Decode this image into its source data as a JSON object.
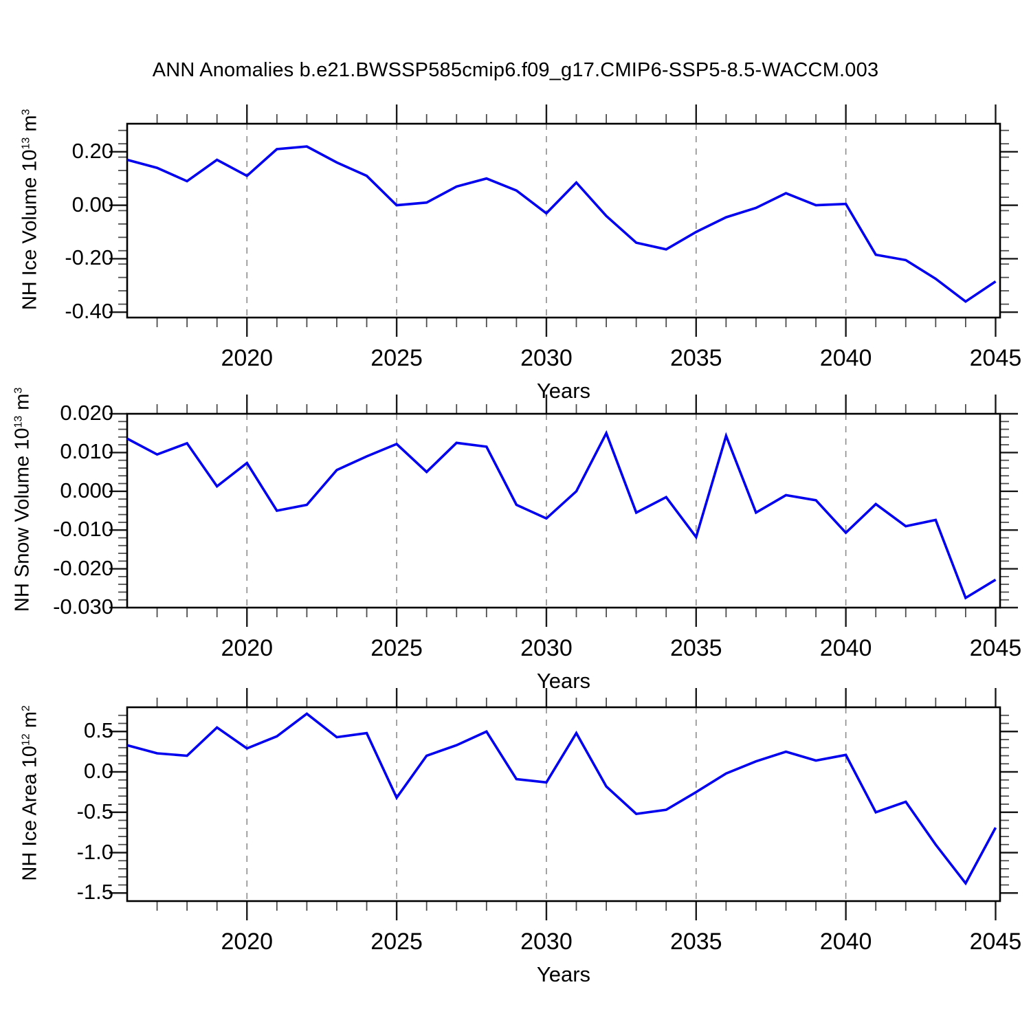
{
  "title": "ANN Anomalies b.e21.BWSSP585cmip6.f09_g17.CMIP6-SSP5-8.5-WACCM.003",
  "colors": {
    "line": "#0000ee",
    "grid": "#8c8c8c",
    "frame": "#000000",
    "major_tick": "#1a1a1a",
    "minor_tick": "#4d4d4d"
  },
  "chart_data": [
    {
      "type": "line",
      "name": "nh-ice-volume",
      "ylabel": {
        "main": "NH Ice Volume 10",
        "exp": "13",
        "unit": " m",
        "unit_exp": "3"
      },
      "xlabel": "Years",
      "x": [
        2016,
        2017,
        2018,
        2019,
        2020,
        2021,
        2022,
        2023,
        2024,
        2025,
        2026,
        2027,
        2028,
        2029,
        2030,
        2031,
        2032,
        2033,
        2034,
        2035,
        2036,
        2037,
        2038,
        2039,
        2040,
        2041,
        2042,
        2043,
        2044,
        2045
      ],
      "values": [
        0.17,
        0.14,
        0.09,
        0.17,
        0.11,
        0.21,
        0.22,
        0.16,
        0.11,
        0.0,
        0.01,
        0.07,
        0.1,
        0.055,
        -0.03,
        0.085,
        -0.04,
        -0.14,
        -0.165,
        -0.1,
        -0.045,
        -0.01,
        0.045,
        0.0,
        0.005,
        -0.185,
        -0.205,
        -0.275,
        -0.36,
        -0.285
      ],
      "xlim": [
        2016,
        2045.15
      ],
      "ylim": [
        -0.42,
        0.305
      ],
      "xticks": {
        "values": [
          2020,
          2025,
          2030,
          2035,
          2040,
          2045
        ],
        "labels": [
          "2020",
          "2025",
          "2030",
          "2035",
          "2040",
          "2045"
        ]
      },
      "yticks": {
        "values": [
          0.2,
          0.0,
          -0.2,
          -0.4
        ],
        "labels": [
          "0.20",
          "0.00",
          "-0.20",
          "-0.40"
        ]
      },
      "y_minor_step": 0.05,
      "grid_x": [
        2020,
        2025,
        2030,
        2035,
        2040
      ],
      "grid": "vertical-dashed",
      "legend": "none"
    },
    {
      "type": "line",
      "name": "nh-snow-volume",
      "ylabel": {
        "main": "NH Snow Volume 10",
        "exp": "13",
        "unit": " m",
        "unit_exp": "3"
      },
      "xlabel": "Years",
      "x": [
        2016,
        2017,
        2018,
        2019,
        2020,
        2021,
        2022,
        2023,
        2024,
        2025,
        2026,
        2027,
        2028,
        2029,
        2030,
        2031,
        2032,
        2033,
        2034,
        2035,
        2036,
        2037,
        2038,
        2039,
        2040,
        2041,
        2042,
        2043,
        2044,
        2045
      ],
      "values": [
        0.0136,
        0.0095,
        0.0124,
        0.0013,
        0.0073,
        -0.005,
        -0.0035,
        0.0055,
        0.009,
        0.0122,
        0.005,
        0.0125,
        0.0115,
        -0.0035,
        -0.007,
        0.0,
        0.015,
        -0.0055,
        -0.0015,
        -0.0118,
        0.0143,
        -0.0055,
        -0.001,
        -0.0023,
        -0.0107,
        -0.0033,
        -0.009,
        -0.0074,
        -0.0275,
        -0.0228
      ],
      "xlim": [
        2016,
        2045.15
      ],
      "ylim": [
        -0.03,
        0.02
      ],
      "xticks": {
        "values": [
          2020,
          2025,
          2030,
          2035,
          2040,
          2045
        ],
        "labels": [
          "2020",
          "2025",
          "2030",
          "2035",
          "2040",
          "2045"
        ]
      },
      "yticks": {
        "values": [
          0.02,
          0.01,
          0.0,
          -0.01,
          -0.02,
          -0.03
        ],
        "labels": [
          "0.020",
          "0.010",
          "0.000",
          "-0.010",
          "-0.020",
          "-0.030"
        ]
      },
      "y_minor_step": 0.002,
      "grid_x": [
        2020,
        2025,
        2030,
        2035,
        2040
      ],
      "grid": "vertical-dashed",
      "legend": "none"
    },
    {
      "type": "line",
      "name": "nh-ice-area",
      "ylabel": {
        "main": "NH Ice Area 10",
        "exp": "12",
        "unit": " m",
        "unit_exp": "2"
      },
      "xlabel": "Years",
      "x": [
        2016,
        2017,
        2018,
        2019,
        2020,
        2021,
        2022,
        2023,
        2024,
        2025,
        2026,
        2027,
        2028,
        2029,
        2030,
        2031,
        2032,
        2033,
        2034,
        2035,
        2036,
        2037,
        2038,
        2039,
        2040,
        2041,
        2042,
        2043,
        2044,
        2045
      ],
      "values": [
        0.33,
        0.23,
        0.2,
        0.55,
        0.29,
        0.44,
        0.72,
        0.43,
        0.48,
        -0.32,
        0.2,
        0.33,
        0.5,
        -0.09,
        -0.13,
        0.48,
        -0.18,
        -0.52,
        -0.47,
        -0.25,
        -0.02,
        0.13,
        0.25,
        0.14,
        0.21,
        -0.5,
        -0.37,
        -0.9,
        -1.38,
        -0.69
      ],
      "xlim": [
        2016,
        2045.15
      ],
      "ylim": [
        -1.6,
        0.8
      ],
      "xticks": {
        "values": [
          2020,
          2025,
          2030,
          2035,
          2040,
          2045
        ],
        "labels": [
          "2020",
          "2025",
          "2030",
          "2035",
          "2040",
          "2045"
        ]
      },
      "yticks": {
        "values": [
          0.5,
          0.0,
          -0.5,
          -1.0,
          -1.5
        ],
        "labels": [
          "0.5",
          "0.0",
          "-0.5",
          "-1.0",
          "-1.5"
        ]
      },
      "y_minor_step": 0.1,
      "grid_x": [
        2020,
        2025,
        2030,
        2035,
        2040
      ],
      "grid": "vertical-dashed",
      "legend": "none"
    }
  ]
}
